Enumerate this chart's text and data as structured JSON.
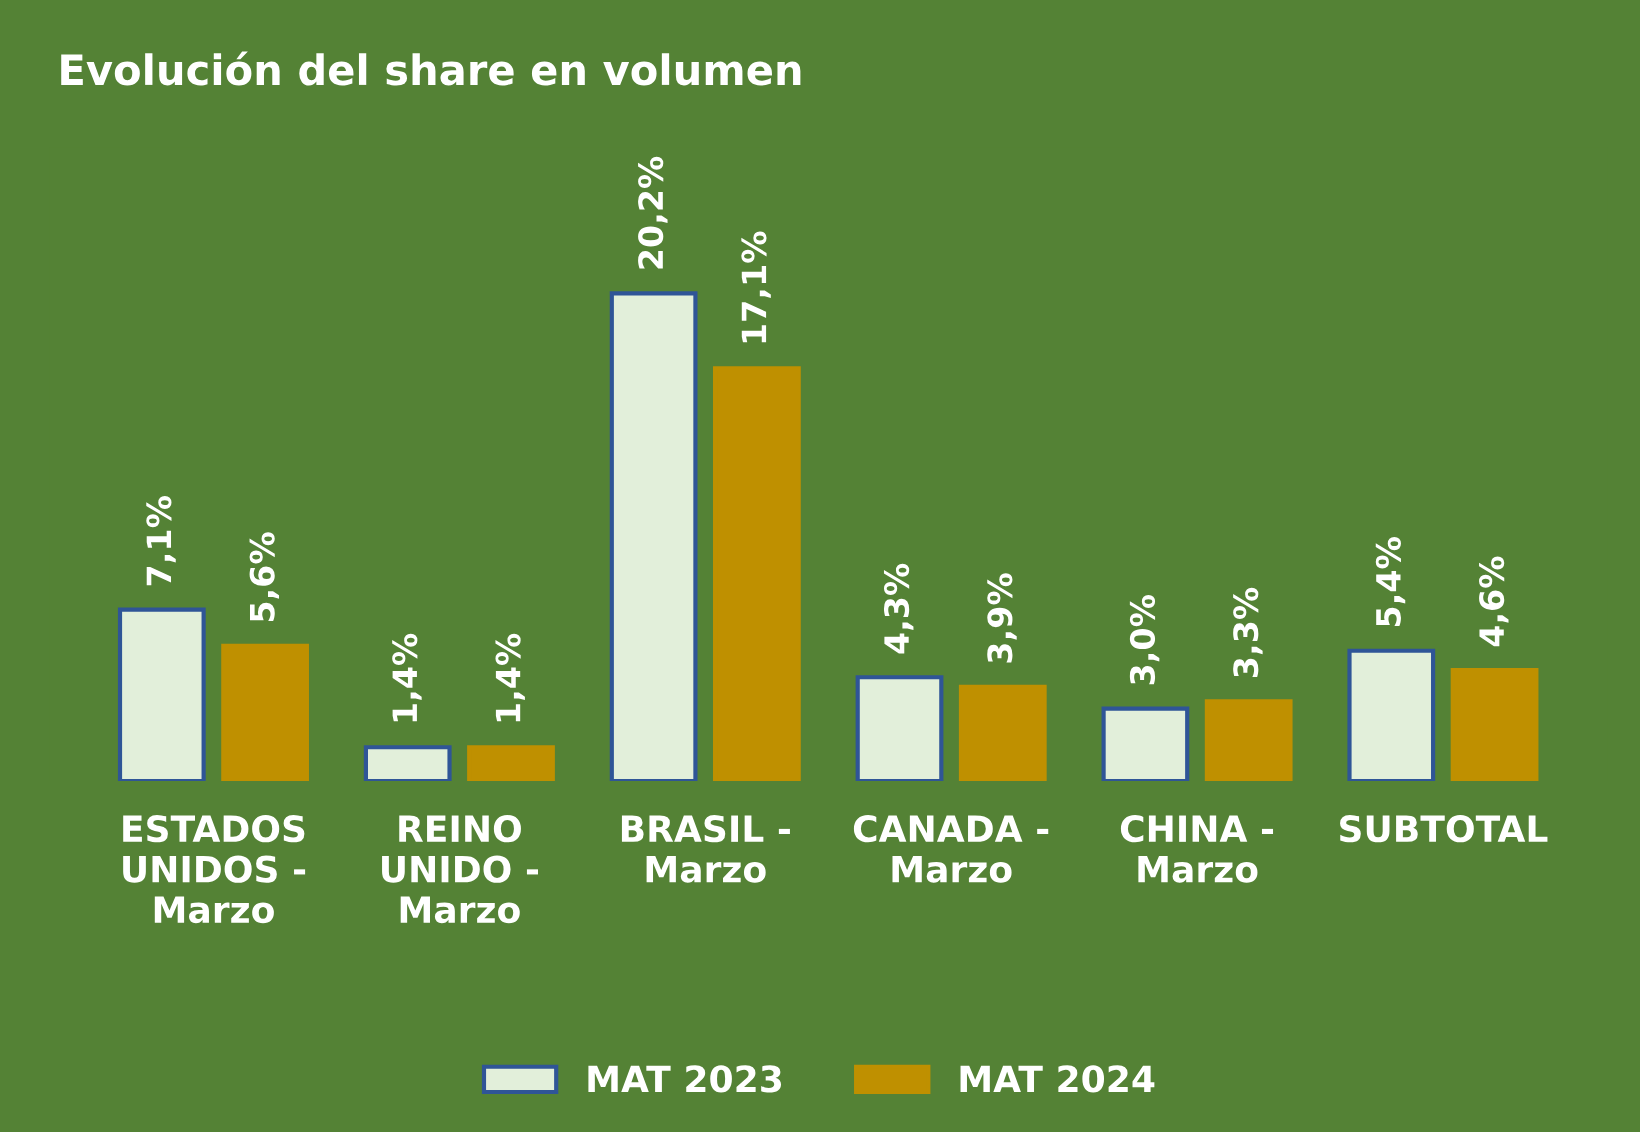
{
  "chart_data": {
    "type": "bar",
    "title": "Evolución del share en volumen",
    "categories": [
      "ESTADOS\nUNIDOS -\nMarzo",
      "REINO\nUNIDO -\nMarzo",
      "BRASIL -\nMarzo",
      "CANADA -\nMarzo",
      "CHINA -\nMarzo",
      "SUBTOTAL"
    ],
    "series": [
      {
        "name": "MAT 2023",
        "color": "#e2efda",
        "values": [
          7.1,
          1.4,
          20.2,
          4.3,
          3.0,
          5.4
        ],
        "value_labels": [
          "7,1%",
          "1,4%",
          "20,2%",
          "4,3%",
          "3,0%",
          "5,4%"
        ]
      },
      {
        "name": "MAT 2024",
        "color": "#bf9000",
        "values": [
          5.6,
          1.4,
          17.1,
          3.9,
          3.3,
          4.6
        ],
        "value_labels": [
          "5,6%",
          "1,4%",
          "17,1%",
          "3,9%",
          "3,3%",
          "4,6%"
        ]
      }
    ],
    "grid": false,
    "legend": "bottom"
  }
}
